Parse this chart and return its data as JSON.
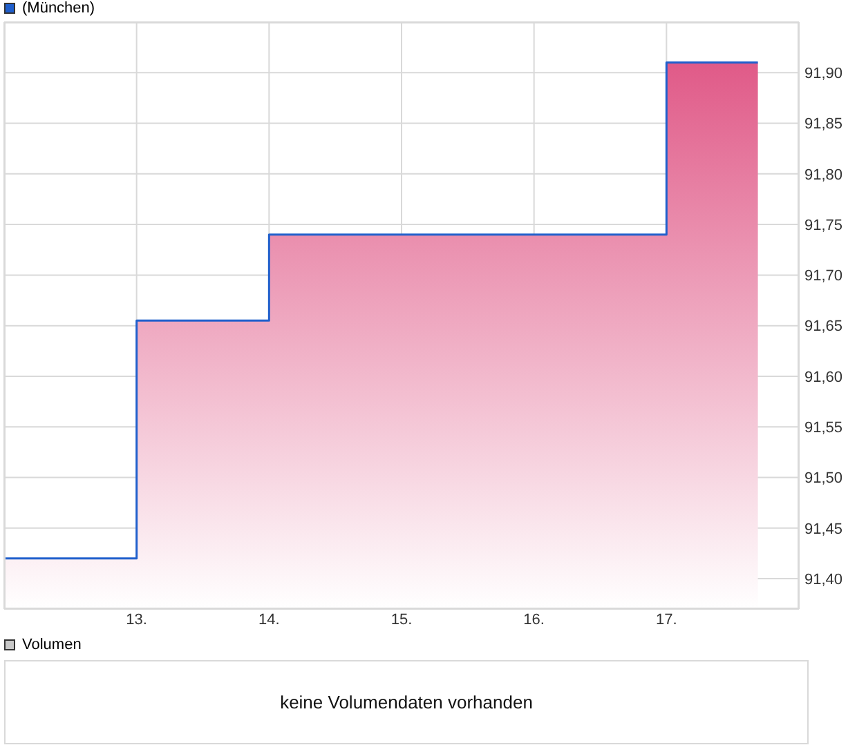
{
  "chart_data": [
    {
      "type": "area",
      "x": [
        12,
        13,
        13,
        14,
        14,
        17,
        17,
        17.69
      ],
      "series": [
        {
          "name": "(München)",
          "color": "#1f5fcc",
          "values": [
            91.42,
            91.42,
            91.655,
            91.655,
            91.74,
            91.74,
            91.91,
            91.91
          ]
        }
      ],
      "xlim": [
        12,
        18
      ],
      "xticks": [
        {
          "value": 13,
          "label": "13."
        },
        {
          "value": 14,
          "label": "14."
        },
        {
          "value": 15,
          "label": "15."
        },
        {
          "value": 16,
          "label": "16."
        },
        {
          "value": 17,
          "label": "17."
        }
      ],
      "ylim": [
        91.37,
        91.95
      ],
      "yticks": [
        {
          "value": 91.4,
          "label": "91,40"
        },
        {
          "value": 91.45,
          "label": "91,45"
        },
        {
          "value": 91.5,
          "label": "91,50"
        },
        {
          "value": 91.55,
          "label": "91,55"
        },
        {
          "value": 91.6,
          "label": "91,60"
        },
        {
          "value": 91.65,
          "label": "91,65"
        },
        {
          "value": 91.7,
          "label": "91,70"
        },
        {
          "value": 91.75,
          "label": "91,75"
        },
        {
          "value": 91.8,
          "label": "91,80"
        },
        {
          "value": 91.85,
          "label": "91,85"
        },
        {
          "value": 91.9,
          "label": "91,90"
        }
      ],
      "grid": true,
      "legend": "top left"
    },
    {
      "type": "other",
      "series": [
        {
          "name": "Volumen",
          "color": "#c8c8c8"
        }
      ],
      "legend": "top left",
      "annotations": [
        "keine Volumendaten vorhanden"
      ]
    }
  ]
}
